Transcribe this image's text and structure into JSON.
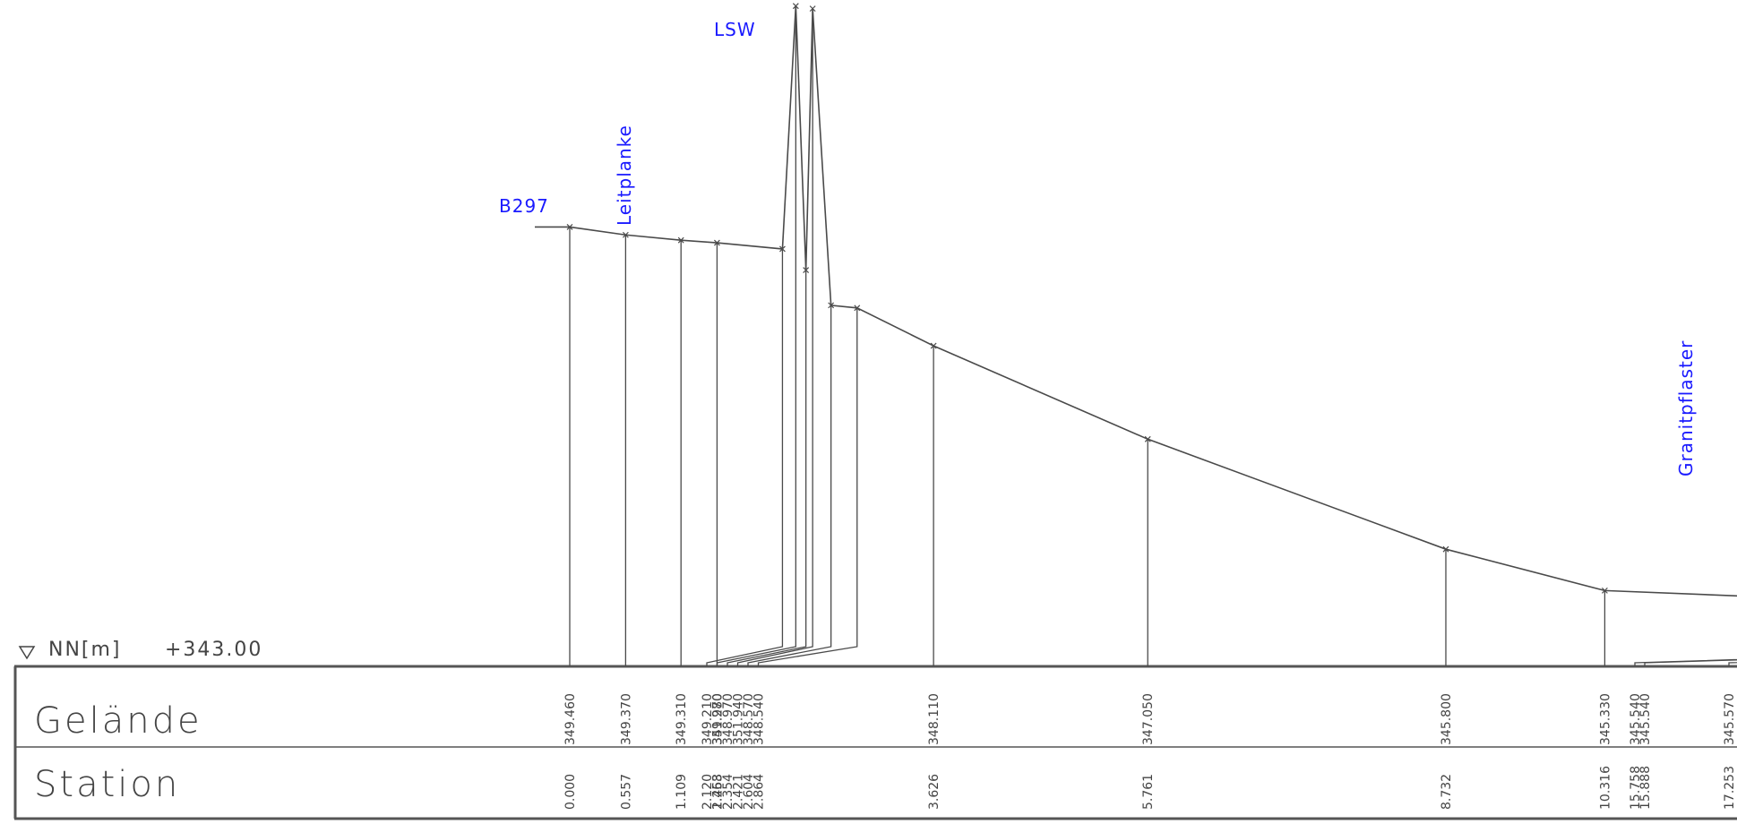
{
  "datum_label": "NN[m]",
  "datum_value": "+343.00",
  "row_labels": {
    "gelaende": "Gelände",
    "station": "Station"
  },
  "annotations": {
    "b297": "B297",
    "leitplanke": "Leitplanke",
    "lsw": "LSW",
    "granitpflaster": "Granitpflaster"
  },
  "profile": {
    "stations": [
      "0.000",
      "0.557",
      "1.109",
      "1.468",
      "2.120",
      "2.253",
      "2.354",
      "2.421",
      "2.604",
      "2.864",
      "3.626",
      "5.761",
      "8.732",
      "10.316",
      "12.290",
      "14.014",
      "15.758",
      "15.888",
      "17.253"
    ],
    "elevations": [
      "349.460",
      "349.370",
      "349.310",
      "349.280",
      "349.210",
      "351.970",
      "348.970",
      "351.940",
      "348.570",
      "348.540",
      "348.110",
      "347.050",
      "345.800",
      "345.330",
      "345.240",
      "345.550",
      "345.540",
      "345.540",
      "345.570"
    ]
  },
  "colors": {
    "line": "#4a4a4a",
    "annotation": "#1a1aff",
    "frame": "#555555"
  }
}
